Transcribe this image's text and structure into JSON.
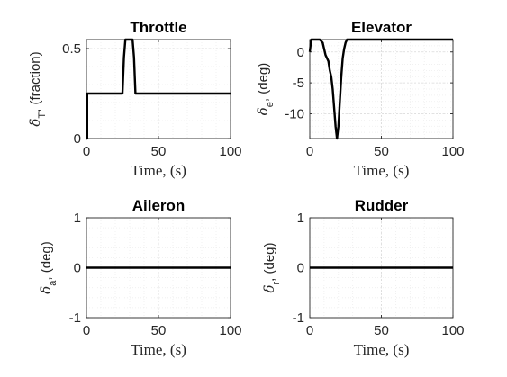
{
  "chart_data": [
    {
      "type": "line",
      "title": "Throttle",
      "xlabel": "Time, (s)",
      "ylabel": {
        "base": "δ",
        "sub": "T",
        "rest": ", (fraction)"
      },
      "xlim": [
        0,
        100
      ],
      "ylim": [
        0,
        0.55
      ],
      "xticks": [
        0,
        50,
        100
      ],
      "yticks": [
        0,
        0.5
      ],
      "grid": "major+minor",
      "series": [
        {
          "x": [
            0,
            0.5,
            0.5,
            25,
            26,
            27,
            32,
            33,
            34,
            100
          ],
          "y": [
            0,
            0,
            0.25,
            0.25,
            0.45,
            0.55,
            0.55,
            0.45,
            0.25,
            0.25
          ]
        }
      ]
    },
    {
      "type": "line",
      "title": "Elevator",
      "xlabel": "Time, (s)",
      "ylabel": {
        "base": "δ",
        "sub": "e",
        "rest": ", (deg)"
      },
      "xlim": [
        0,
        100
      ],
      "ylim": [
        -14,
        2
      ],
      "xticks": [
        0,
        50,
        100
      ],
      "yticks": [
        0,
        -5,
        -10
      ],
      "grid": "major+minor",
      "series": [
        {
          "x": [
            0,
            1,
            2,
            3,
            7,
            9,
            10,
            11,
            13,
            14,
            15,
            16,
            17,
            18,
            19,
            20,
            21,
            22,
            23,
            24,
            25,
            26,
            28,
            100
          ],
          "y": [
            0,
            2,
            2,
            2,
            2,
            1.5,
            0.5,
            -0.5,
            -1.5,
            -3,
            -4,
            -6,
            -9,
            -12,
            -14,
            -12,
            -8,
            -4,
            -1,
            0.5,
            1.5,
            2,
            2,
            2
          ]
        }
      ]
    },
    {
      "type": "line",
      "title": "Aileron",
      "xlabel": "Time, (s)",
      "ylabel": {
        "base": "δ",
        "sub": "a",
        "rest": ", (deg)"
      },
      "xlim": [
        0,
        100
      ],
      "ylim": [
        -1,
        1
      ],
      "xticks": [
        0,
        50,
        100
      ],
      "yticks": [
        -1,
        0,
        1
      ],
      "grid": "major+minor",
      "series": [
        {
          "x": [
            0,
            100
          ],
          "y": [
            0,
            0
          ]
        }
      ]
    },
    {
      "type": "line",
      "title": "Rudder",
      "xlabel": "Time, (s)",
      "ylabel": {
        "base": "δ",
        "sub": "r",
        "rest": ", (deg)"
      },
      "xlim": [
        0,
        100
      ],
      "ylim": [
        -1,
        1
      ],
      "xticks": [
        0,
        50,
        100
      ],
      "yticks": [
        -1,
        0,
        1
      ],
      "grid": "major+minor",
      "series": [
        {
          "x": [
            0,
            100
          ],
          "y": [
            0,
            0
          ]
        }
      ]
    }
  ]
}
